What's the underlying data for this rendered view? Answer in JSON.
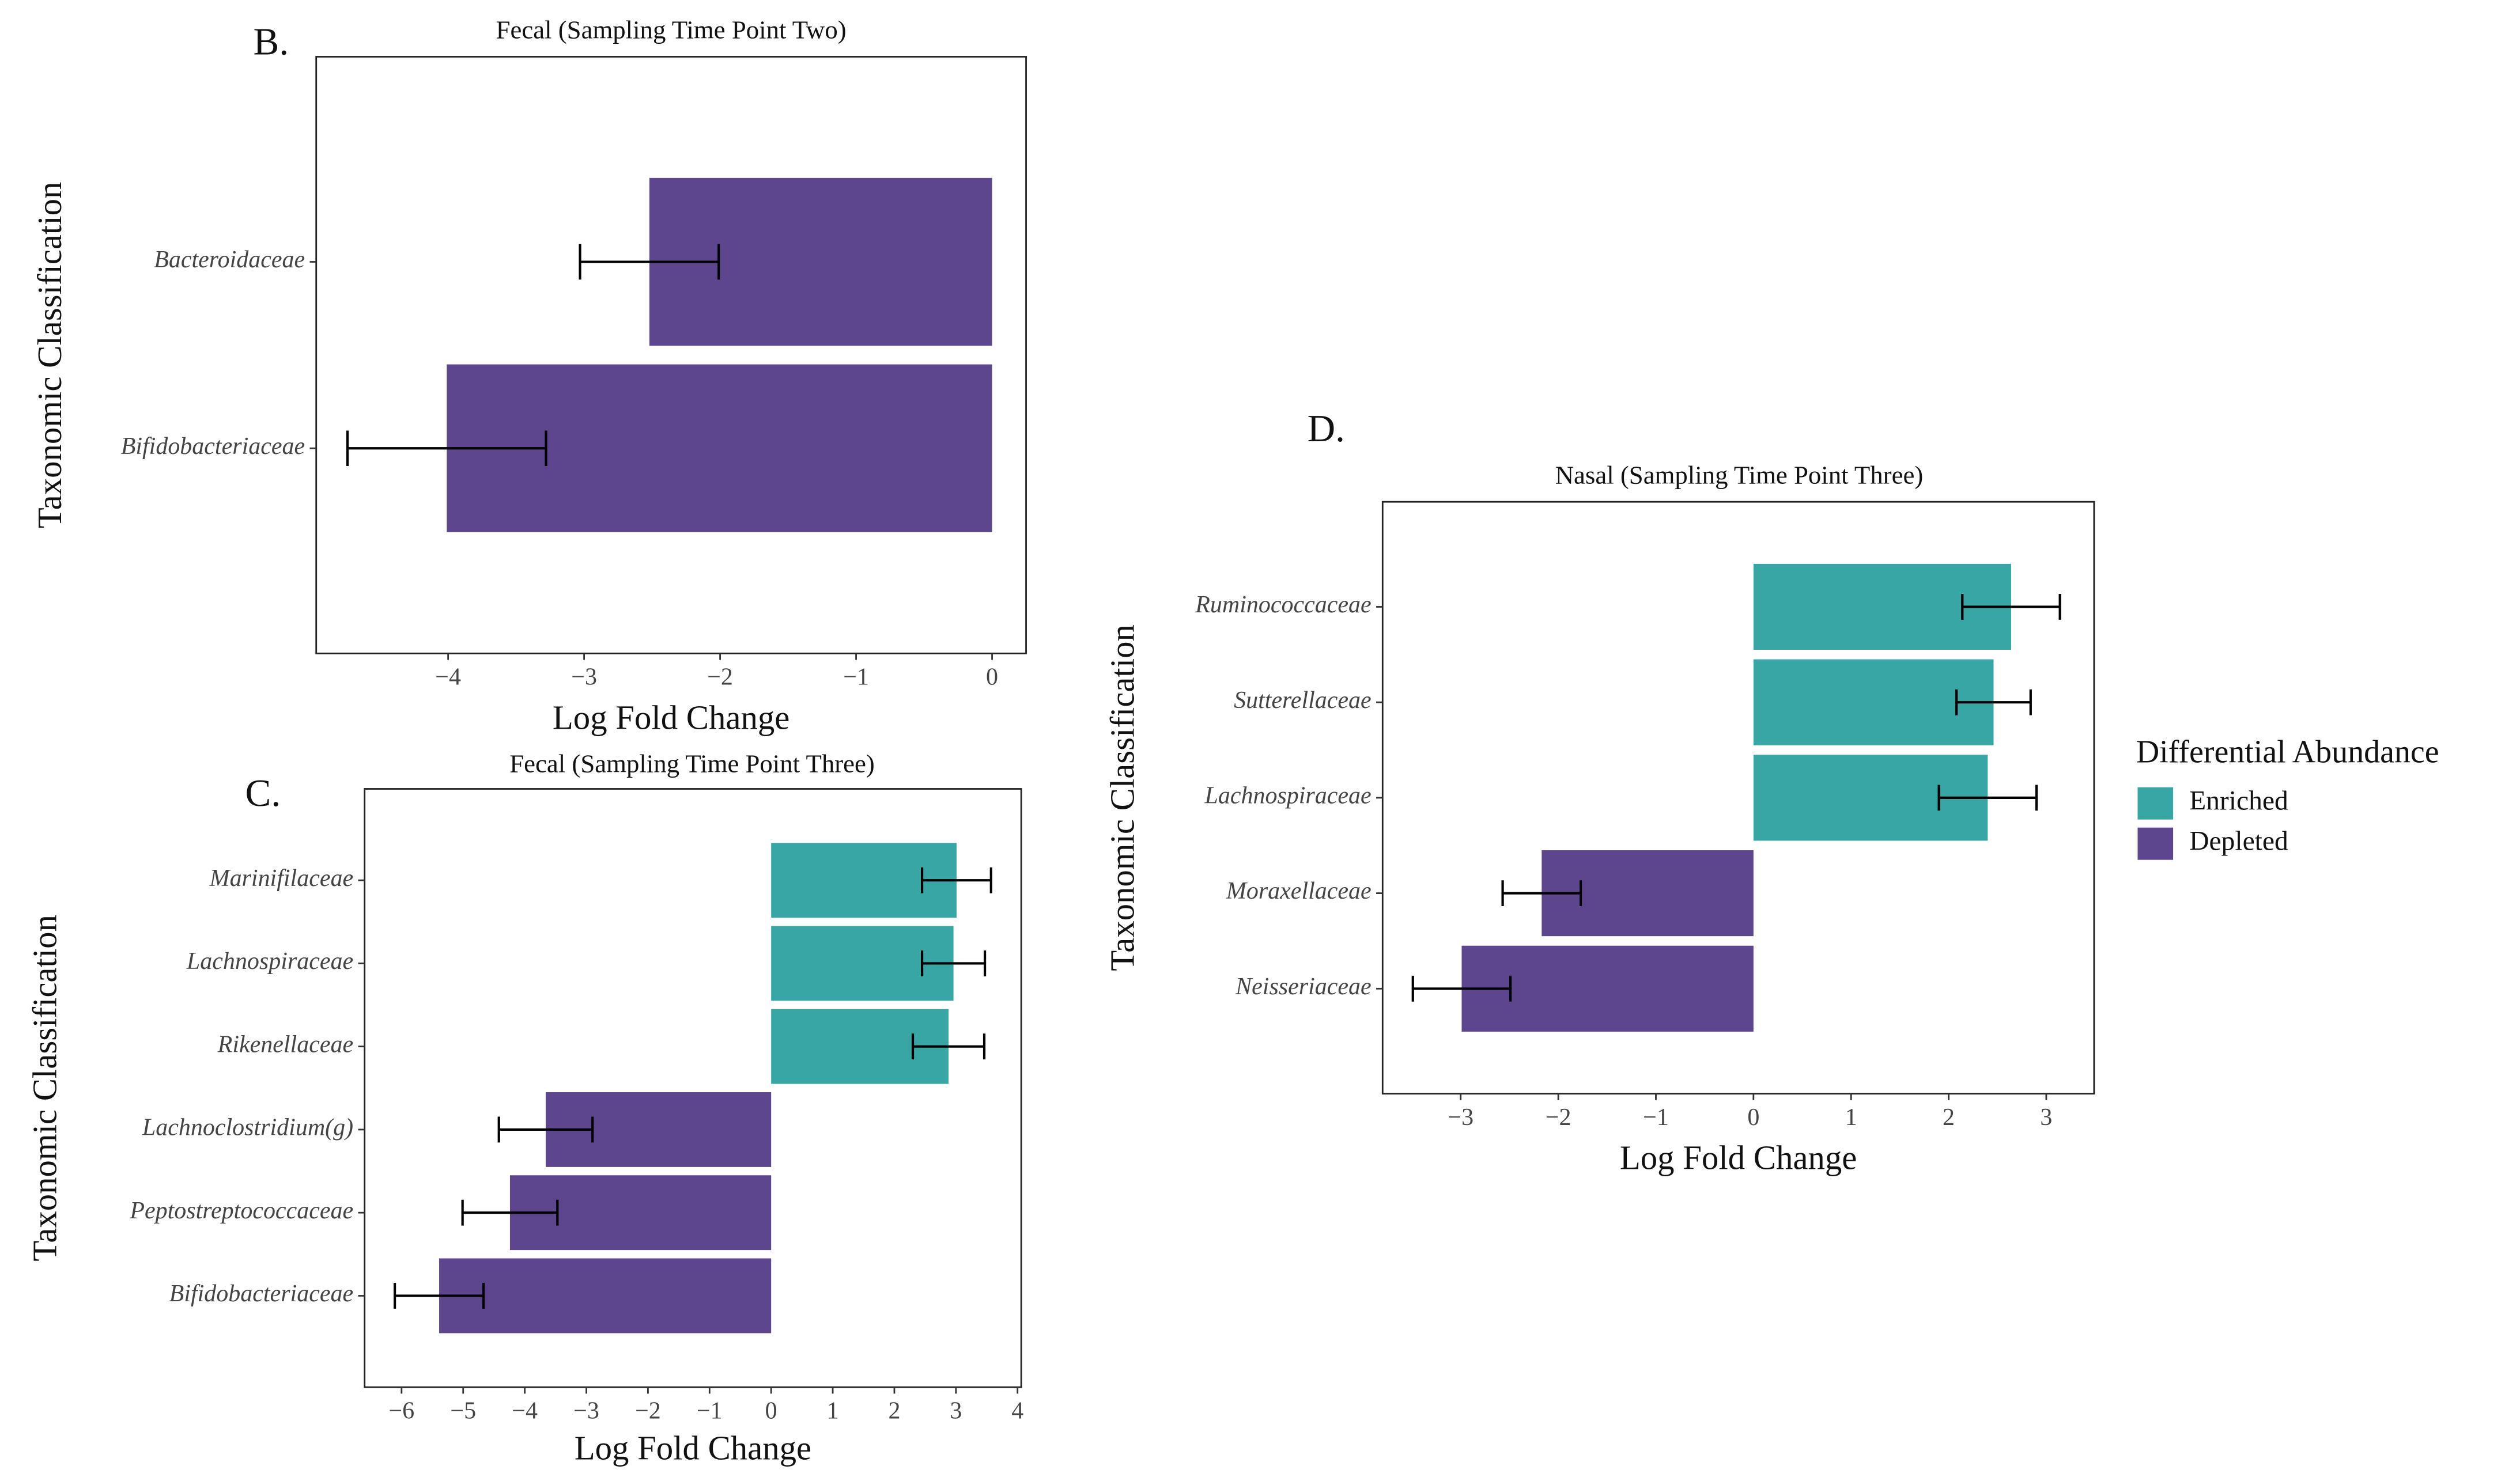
{
  "chart_data": [
    {
      "type": "bar",
      "orientation": "horizontal",
      "panel_label": "B.",
      "title": "Fecal (Sampling Time Point Two)",
      "x_label": "Log Fold Change",
      "y_label": "Taxonomic Classification",
      "categories": [
        "Bacteroidaceae",
        "Bifidobacteriaceae"
      ],
      "values": [
        -2.52,
        -4.01
      ],
      "errors": [
        0.51,
        0.73
      ],
      "colors": [
        "#5e468f",
        "#5e468f"
      ],
      "xlim": [
        -4.97,
        0.25
      ],
      "xticks": [
        {
          "value": -4,
          "label": "−4"
        },
        {
          "value": -3,
          "label": "−3"
        },
        {
          "value": -2,
          "label": "−2"
        },
        {
          "value": -1,
          "label": "−1"
        },
        0
      ]
    },
    {
      "type": "bar",
      "orientation": "horizontal",
      "panel_label": "C.",
      "title": "Fecal (Sampling Time Point Three)",
      "x_label": "Log Fold Change",
      "y_label": "Taxonomic Classification",
      "categories": [
        "Marinifilaceae",
        "Lachnospiraceae",
        "Rikenellaceae",
        "Lachnoclostridium(g)",
        "Peptostreptococcaceae",
        "Bifidobacteriaceae"
      ],
      "values": [
        3.01,
        2.96,
        2.88,
        -3.66,
        -4.24,
        -5.39
      ],
      "errors": [
        0.56,
        0.51,
        0.58,
        0.76,
        0.77,
        0.72
      ],
      "colors": [
        "#38a6a5",
        "#38a6a5",
        "#38a6a5",
        "#5e468f",
        "#5e468f",
        "#5e468f"
      ],
      "xlim": [
        -6.6,
        4.06
      ],
      "xticks": [
        {
          "value": -6,
          "label": "−6"
        },
        {
          "value": -5,
          "label": "−5"
        },
        {
          "value": -4,
          "label": "−4"
        },
        {
          "value": -3,
          "label": "−3"
        },
        {
          "value": -2,
          "label": "−2"
        },
        {
          "value": -1,
          "label": "−1"
        },
        0,
        1,
        2,
        3,
        4
      ]
    },
    {
      "type": "bar",
      "orientation": "horizontal",
      "panel_label": "D.",
      "title": "Nasal (Sampling Time Point Three)",
      "x_label": "Log Fold Change",
      "y_label": "Taxonomic Classification",
      "categories": [
        "Ruminococcaceae",
        "Sutterellaceae",
        "Lachnospiraceae",
        "Moraxellaceae",
        "Neisseriaceae"
      ],
      "values": [
        2.64,
        2.46,
        2.4,
        -2.17,
        -2.99
      ],
      "errors": [
        0.5,
        0.38,
        0.5,
        0.4,
        0.5
      ],
      "colors": [
        "#38a6a5",
        "#38a6a5",
        "#38a6a5",
        "#5e468f",
        "#5e468f"
      ],
      "xlim": [
        -3.8,
        3.49
      ],
      "xticks": [
        {
          "value": -3,
          "label": "−3"
        },
        {
          "value": -2,
          "label": "−2"
        },
        {
          "value": -1,
          "label": "−1"
        },
        0,
        1,
        2,
        3
      ],
      "legend": {
        "title": "Differential Abundance",
        "items": [
          {
            "label": "Enriched",
            "color": "#38a6a5"
          },
          {
            "label": "Depleted",
            "color": "#5e468f"
          }
        ]
      }
    }
  ]
}
